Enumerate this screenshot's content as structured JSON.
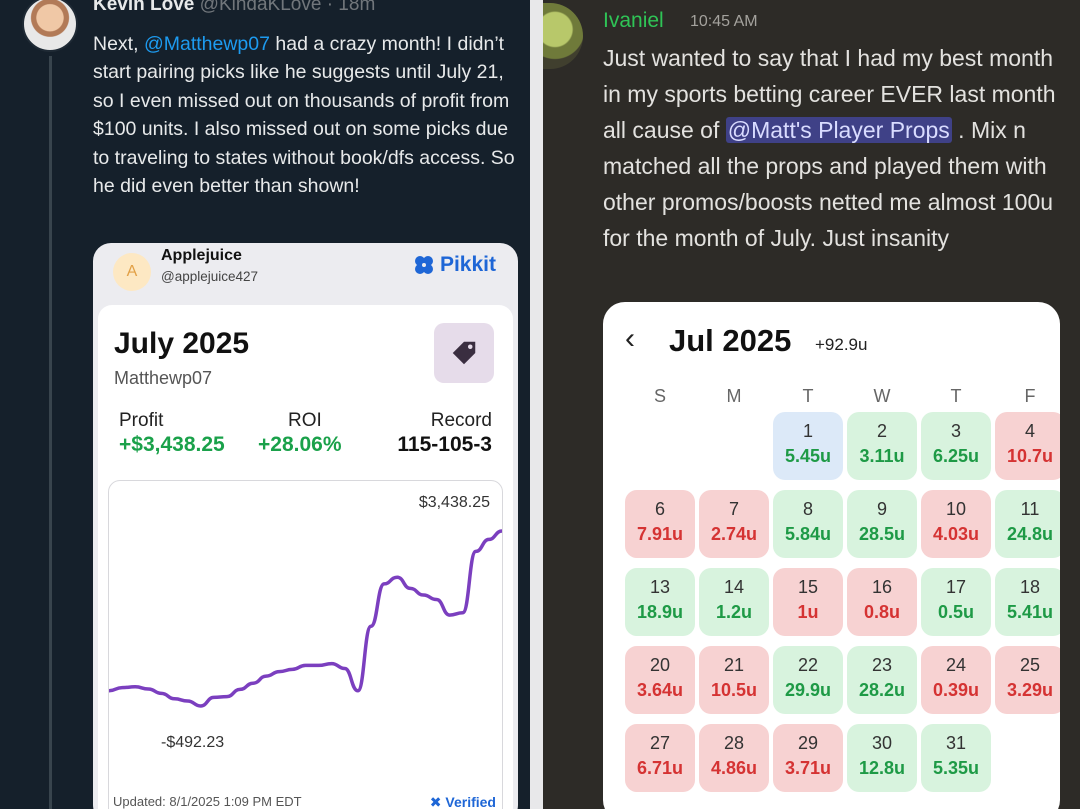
{
  "tweet": {
    "author_name": "Kevin Love",
    "author_handle": "@KindaKLove",
    "time": "· 18m",
    "text_before_mention": "Next, ",
    "mention": "@Matthewp07",
    "text_after_mention": " had a crazy month! I didn’t start pairing picks like he suggests until July 21, so I even missed out on thousands of profit from $100 units. I also missed out on some picks due to traveling to states without book/dfs access. So he did even better than shown!"
  },
  "pikkit_card": {
    "avatar_letter": "A",
    "username": "Applejuice",
    "handle": "@applejuice427",
    "logo_text": "Pikkit",
    "month": "July 2025",
    "subject": "Matthewp07",
    "stats": {
      "profit_label": "Profit",
      "profit_value": "+$3,438.25",
      "roi_label": "ROI",
      "roi_value": "+28.06%",
      "record_label": "Record",
      "record_value": "115-105-3"
    },
    "chart_max_label": "$3,438.25",
    "chart_min_label": "-$492.23",
    "updated": "Updated: 8/1/2025 1:09 PM EDT",
    "verified": "Verified"
  },
  "chart_data": {
    "type": "line",
    "title": "",
    "xlabel": "",
    "ylabel": "",
    "ylim": [
      -492.23,
      3438.25
    ],
    "annotations": [
      "$3,438.25",
      "-$492.23"
    ],
    "series": [
      {
        "values": [
          -150,
          -80,
          -60,
          -110,
          -210,
          -330,
          -380,
          -492.23,
          -300,
          -280,
          -120,
          20,
          180,
          280,
          330,
          420,
          420,
          460,
          350,
          -150,
          1300,
          2250,
          2400,
          2150,
          2000,
          1900,
          1550,
          1600,
          2980,
          3250,
          3438.25
        ]
      }
    ],
    "color": "#7b3fbf"
  },
  "discord": {
    "username": "Ivaniel",
    "time": "10:45 AM",
    "text_before_mention": "Just wanted to say that I had my best month in my sports betting career EVER last month all cause of ",
    "mention": "@Matt's Player Props",
    "text_after_mention": " . Mix n matched all the props and played them with other promos/boosts netted me almost 100u for the month of July. Just insanity",
    "name_color": "#2fc456"
  },
  "calendar": {
    "back_icon": "chevron-left-icon",
    "month": "Jul 2025",
    "total": "+92.9u",
    "weekdays": [
      "S",
      "M",
      "T",
      "W",
      "T",
      "F"
    ],
    "days": [
      {
        "day": "1",
        "units": "5.45u",
        "result": "neutral"
      },
      {
        "day": "2",
        "units": "3.11u",
        "result": "win"
      },
      {
        "day": "3",
        "units": "6.25u",
        "result": "win"
      },
      {
        "day": "4",
        "units": "10.7u",
        "result": "loss"
      },
      {
        "day": "6",
        "units": "7.91u",
        "result": "loss"
      },
      {
        "day": "7",
        "units": "2.74u",
        "result": "loss"
      },
      {
        "day": "8",
        "units": "5.84u",
        "result": "win"
      },
      {
        "day": "9",
        "units": "28.5u",
        "result": "win"
      },
      {
        "day": "10",
        "units": "4.03u",
        "result": "loss"
      },
      {
        "day": "11",
        "units": "24.8u",
        "result": "win"
      },
      {
        "day": "13",
        "units": "18.9u",
        "result": "win"
      },
      {
        "day": "14",
        "units": "1.2u",
        "result": "win"
      },
      {
        "day": "15",
        "units": "1u",
        "result": "loss"
      },
      {
        "day": "16",
        "units": "0.8u",
        "result": "loss"
      },
      {
        "day": "17",
        "units": "0.5u",
        "result": "win"
      },
      {
        "day": "18",
        "units": "5.41u",
        "result": "win"
      },
      {
        "day": "20",
        "units": "3.64u",
        "result": "loss"
      },
      {
        "day": "21",
        "units": "10.5u",
        "result": "loss"
      },
      {
        "day": "22",
        "units": "29.9u",
        "result": "win"
      },
      {
        "day": "23",
        "units": "28.2u",
        "result": "win"
      },
      {
        "day": "24",
        "units": "0.39u",
        "result": "loss"
      },
      {
        "day": "25",
        "units": "3.29u",
        "result": "loss"
      },
      {
        "day": "27",
        "units": "6.71u",
        "result": "loss"
      },
      {
        "day": "28",
        "units": "4.86u",
        "result": "loss"
      },
      {
        "day": "29",
        "units": "3.71u",
        "result": "loss"
      },
      {
        "day": "30",
        "units": "12.8u",
        "result": "win"
      },
      {
        "day": "31",
        "units": "5.35u",
        "result": "win"
      }
    ]
  }
}
